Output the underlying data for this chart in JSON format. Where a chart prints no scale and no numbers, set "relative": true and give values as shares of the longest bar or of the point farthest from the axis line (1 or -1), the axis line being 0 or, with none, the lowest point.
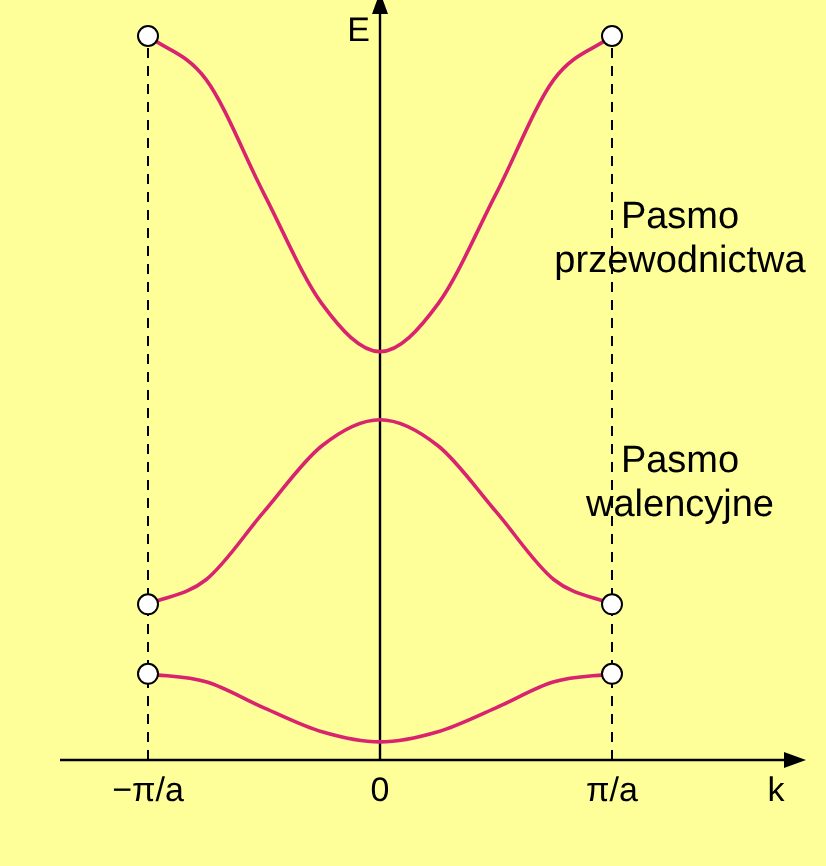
{
  "chart_data": {
    "type": "line",
    "relative": true,
    "xlabel": "k",
    "ylabel": "E",
    "marker": "none",
    "categories": [
      "−π/a",
      null,
      null,
      null,
      "0",
      null,
      null,
      null,
      "π/a"
    ],
    "series": [
      {
        "color": "#d9236e",
        "values": [
          1,
          0.94,
          0.782,
          0.63,
          0.564,
          0.63,
          0.782,
          0.94,
          1
        ]
      },
      {
        "color": "#d9236e",
        "values": [
          0.215,
          0.249,
          0.343,
          0.434,
          0.47,
          0.434,
          0.343,
          0.249,
          0.215
        ]
      },
      {
        "color": "#d9236e",
        "values": [
          0.119,
          0.108,
          0.072,
          0.039,
          0.025,
          0.039,
          0.072,
          0.108,
          0.119
        ]
      },
      {
        "type": "scatter",
        "marker": "circle",
        "color": "#000000",
        "values": [
          1,
          null,
          null,
          null,
          null,
          null,
          null,
          null,
          1
        ]
      },
      {
        "type": "scatter",
        "marker": "circle",
        "color": "#000000",
        "values": [
          0.215,
          null,
          null,
          null,
          null,
          null,
          null,
          null,
          0.215
        ]
      },
      {
        "type": "scatter",
        "marker": "circle",
        "color": "#000000",
        "values": [
          0.119,
          null,
          null,
          null,
          null,
          null,
          null,
          null,
          0.119
        ]
      }
    ],
    "ref_lines": [
      {
        "axis": "x",
        "value": "−π/a",
        "line_style": "dashed",
        "color": "#000000"
      },
      {
        "axis": "x",
        "value": "π/a",
        "line_style": "dashed",
        "color": "#000000"
      }
    ],
    "annotations": [
      "Pasmo przewodnictwa",
      "Pasmo walencyjne"
    ]
  }
}
